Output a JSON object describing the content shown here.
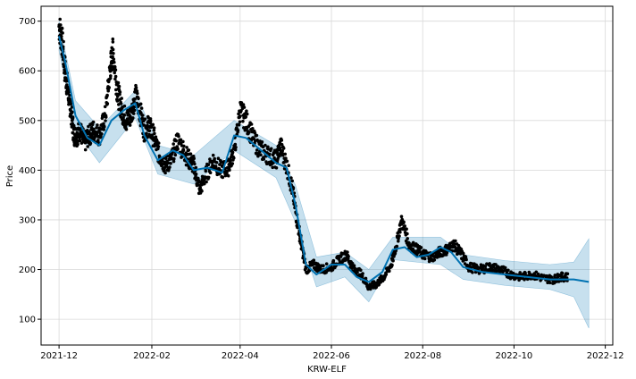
{
  "chart_data": {
    "type": "line",
    "title": "",
    "xlabel": "KRW-ELF",
    "ylabel": "Price",
    "x_ticks": [
      "2021-12",
      "2022-02",
      "2022-04",
      "2022-06",
      "2022-08",
      "2022-10",
      "2022-12"
    ],
    "y_ticks": [
      100,
      200,
      300,
      400,
      500,
      600,
      700
    ],
    "xlim": [
      "2021-11-19",
      "2022-12-06"
    ],
    "ylim": [
      48,
      730
    ],
    "grid": true,
    "legend": "none",
    "colors": {
      "observed": "#000000",
      "forecast": "#0072b2",
      "uncertainty": "#0072b2",
      "grid": "#d9d9d9"
    },
    "series": [
      {
        "role": "forecast",
        "x": [
          "2021-12-01",
          "2021-12-05",
          "2021-12-12",
          "2021-12-20",
          "2021-12-28",
          "2022-01-05",
          "2022-01-13",
          "2022-01-21",
          "2022-01-27",
          "2022-02-05",
          "2022-02-15",
          "2022-02-22",
          "2022-03-01",
          "2022-03-10",
          "2022-03-20",
          "2022-03-28",
          "2022-04-05",
          "2022-04-15",
          "2022-04-25",
          "2022-05-02",
          "2022-05-08",
          "2022-05-15",
          "2022-05-22",
          "2022-06-01",
          "2022-06-10",
          "2022-06-18",
          "2022-06-26",
          "2022-07-05",
          "2022-07-12",
          "2022-07-20",
          "2022-07-28",
          "2022-08-05",
          "2022-08-13",
          "2022-08-20",
          "2022-08-28",
          "2022-09-10",
          "2022-09-25",
          "2022-10-10",
          "2022-10-25",
          "2022-11-10",
          "2022-11-20"
        ],
        "y": [
          670,
          620,
          510,
          465,
          450,
          500,
          520,
          535,
          470,
          420,
          440,
          430,
          400,
          405,
          395,
          470,
          465,
          440,
          415,
          405,
          330,
          210,
          190,
          210,
          210,
          185,
          175,
          195,
          240,
          245,
          225,
          230,
          245,
          235,
          205,
          195,
          190,
          185,
          180,
          180,
          175
        ]
      },
      {
        "role": "uncertainty_upper",
        "x": [
          "2021-12-01",
          "2021-12-12",
          "2021-12-28",
          "2022-01-21",
          "2022-02-05",
          "2022-03-01",
          "2022-03-28",
          "2022-04-25",
          "2022-05-08",
          "2022-05-22",
          "2022-06-10",
          "2022-06-26",
          "2022-07-12",
          "2022-08-13",
          "2022-08-28",
          "2022-09-25",
          "2022-10-25",
          "2022-11-10",
          "2022-11-20"
        ],
        "y": [
          700,
          540,
          485,
          560,
          450,
          430,
          500,
          450,
          370,
          225,
          235,
          200,
          265,
          265,
          230,
          218,
          210,
          215,
          262
        ]
      },
      {
        "role": "uncertainty_lower",
        "x": [
          "2021-12-01",
          "2021-12-12",
          "2021-12-28",
          "2022-01-21",
          "2022-02-05",
          "2022-03-01",
          "2022-03-28",
          "2022-04-25",
          "2022-05-08",
          "2022-05-22",
          "2022-06-10",
          "2022-06-26",
          "2022-07-12",
          "2022-08-13",
          "2022-08-28",
          "2022-09-25",
          "2022-10-25",
          "2022-11-10",
          "2022-11-20"
        ],
        "y": [
          640,
          480,
          415,
          505,
          392,
          372,
          440,
          385,
          295,
          165,
          185,
          135,
          220,
          210,
          180,
          168,
          160,
          145,
          82
        ]
      },
      {
        "role": "observed",
        "x": [
          "2021-12-01",
          "2021-12-03",
          "2021-12-05",
          "2021-12-07",
          "2021-12-09",
          "2021-12-11",
          "2021-12-13",
          "2021-12-15",
          "2021-12-18",
          "2021-12-21",
          "2021-12-24",
          "2021-12-28",
          "2022-01-01",
          "2022-01-04",
          "2022-01-06",
          "2022-01-09",
          "2022-01-12",
          "2022-01-15",
          "2022-01-18",
          "2022-01-21",
          "2022-01-24",
          "2022-01-27",
          "2022-01-30",
          "2022-02-02",
          "2022-02-06",
          "2022-02-10",
          "2022-02-14",
          "2022-02-18",
          "2022-02-22",
          "2022-02-26",
          "2022-03-01",
          "2022-03-05",
          "2022-03-09",
          "2022-03-14",
          "2022-03-19",
          "2022-03-24",
          "2022-03-28",
          "2022-04-01",
          "2022-04-05",
          "2022-04-10",
          "2022-04-15",
          "2022-04-20",
          "2022-04-25",
          "2022-04-28",
          "2022-05-02",
          "2022-05-06",
          "2022-05-09",
          "2022-05-12",
          "2022-05-15",
          "2022-05-20",
          "2022-05-25",
          "2022-06-01",
          "2022-06-06",
          "2022-06-11",
          "2022-06-16",
          "2022-06-21",
          "2022-06-26",
          "2022-07-01",
          "2022-07-06",
          "2022-07-11",
          "2022-07-14",
          "2022-07-18",
          "2022-07-23",
          "2022-07-28",
          "2022-08-02",
          "2022-08-07",
          "2022-08-12",
          "2022-08-17",
          "2022-08-22",
          "2022-08-27",
          "2022-09-01",
          "2022-09-08",
          "2022-09-15",
          "2022-09-22",
          "2022-09-29",
          "2022-10-06",
          "2022-10-13",
          "2022-10-20",
          "2022-10-27",
          "2022-11-01"
        ],
        "y": [
          690,
          660,
          600,
          560,
          520,
          470,
          470,
          480,
          455,
          470,
          480,
          470,
          510,
          600,
          640,
          560,
          520,
          500,
          510,
          550,
          520,
          480,
          490,
          470,
          430,
          410,
          420,
          460,
          440,
          420,
          410,
          360,
          390,
          420,
          400,
          405,
          440,
          520,
          500,
          460,
          440,
          430,
          420,
          450,
          410,
          360,
          300,
          250,
          200,
          210,
          200,
          205,
          220,
          230,
          200,
          190,
          165,
          170,
          185,
          210,
          245,
          300,
          250,
          240,
          230,
          225,
          235,
          240,
          250,
          230,
          205,
          200,
          205,
          200,
          190,
          185,
          190,
          183,
          180,
          185
        ]
      }
    ]
  }
}
